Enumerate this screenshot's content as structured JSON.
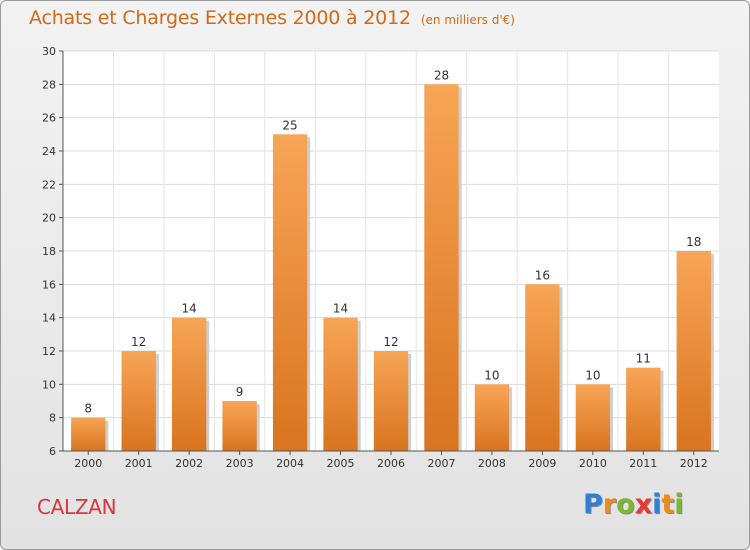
{
  "title": "Achats et Charges Externes 2000 à 2012",
  "subtitle": "(en milliers d'€)",
  "city": "CALZAN",
  "brand": {
    "letters": [
      "P",
      "r",
      "o",
      "x",
      "i",
      "t",
      "i"
    ],
    "colors": [
      "#2f7fd3",
      "#f08a1a",
      "#7cb82f",
      "#e53935",
      "#2f7fd3",
      "#f08a1a",
      "#7cb82f"
    ]
  },
  "colors": {
    "bar_light": "#f7a556",
    "bar_dark": "#d9741f",
    "text_accent": "#d06a17",
    "city": "#d9353b"
  },
  "chart_data": {
    "type": "bar",
    "categories": [
      "2000",
      "2001",
      "2002",
      "2003",
      "2004",
      "2005",
      "2006",
      "2007",
      "2008",
      "2009",
      "2010",
      "2011",
      "2012"
    ],
    "values": [
      8,
      12,
      14,
      9,
      25,
      14,
      12,
      28,
      10,
      16,
      10,
      11,
      18
    ],
    "data_labels": [
      "8",
      "12",
      "14",
      "9",
      "25",
      "14",
      "12",
      "28",
      "10",
      "16",
      "10",
      "11",
      "18"
    ],
    "ylim": [
      6,
      30
    ],
    "yticks": [
      6,
      8,
      10,
      12,
      14,
      16,
      18,
      20,
      22,
      24,
      26,
      28,
      30
    ],
    "grid": true
  }
}
